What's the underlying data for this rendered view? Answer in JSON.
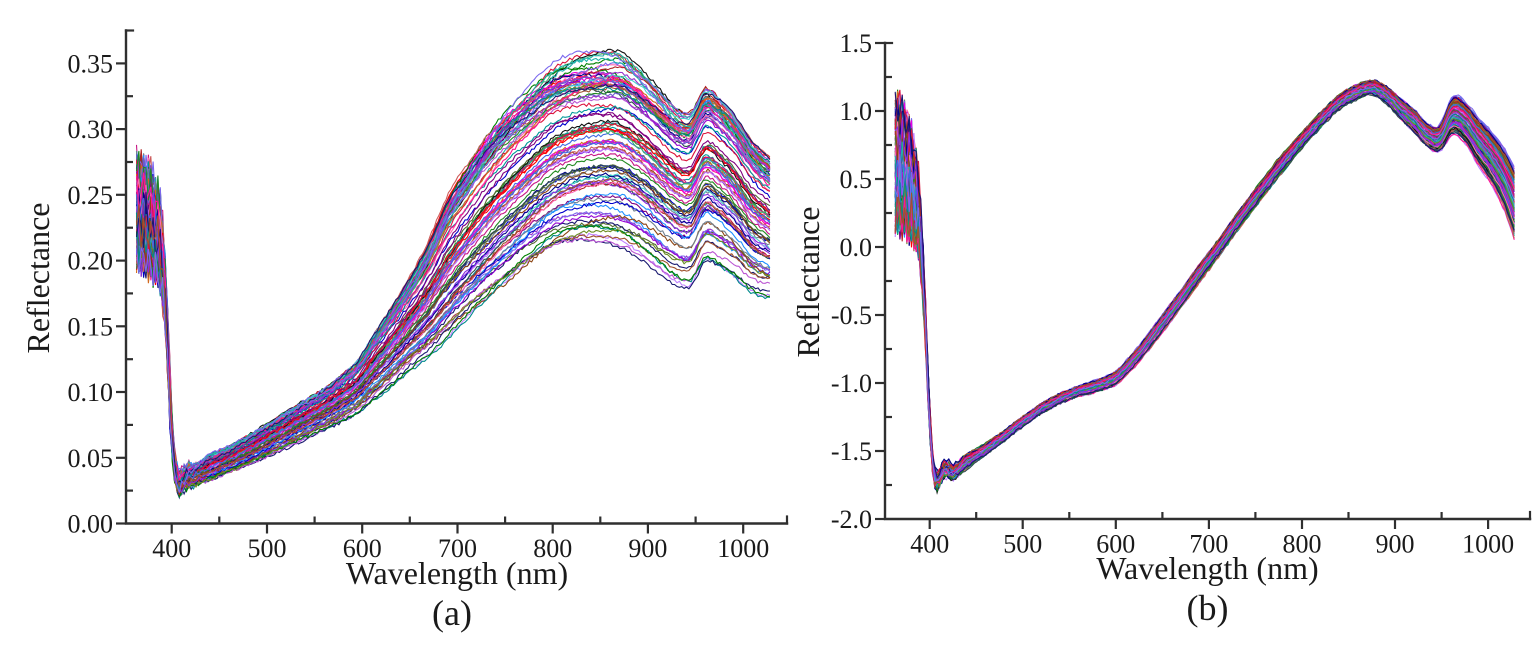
{
  "page": {
    "background": "#ffffff"
  },
  "style": {
    "axis_color": "#2f2f2f",
    "text_color": "#1a1a1a",
    "line_width": 1.1,
    "palette": [
      "#e600e6",
      "#bf7fff",
      "#0000cd",
      "#008000",
      "#ff0000",
      "#009999",
      "#800080",
      "#556b2f",
      "#1e90ff",
      "#c71585",
      "#2f4f4f",
      "#b22222",
      "#6a5acd",
      "#228b22",
      "#ff69b4",
      "#00008b",
      "#8b4513",
      "#9932cc",
      "#20b2aa",
      "#dc143c",
      "#4169e1",
      "#6b8e23",
      "#8a2be2",
      "#008b8b",
      "#ff1493",
      "#191970",
      "#a0522d",
      "#7b68ee",
      "#3cb371",
      "#cd5c5c",
      "#9400d3",
      "#111111",
      "#708090",
      "#d2691e",
      "#48d1cc",
      "#ba55d3"
    ]
  },
  "chart_data": [
    {
      "id": "a",
      "type": "line",
      "caption": "(a)",
      "xlabel": "Wavelength (nm)",
      "ylabel": "Reflectance",
      "x_range": [
        352,
        1046
      ],
      "y_range": [
        0,
        0.375
      ],
      "x_major": [
        {
          "nm": 400,
          "label": "400"
        },
        {
          "nm": 500,
          "label": "500"
        },
        {
          "nm": 600,
          "label": "600"
        },
        {
          "nm": 700,
          "label": "700"
        },
        {
          "nm": 800,
          "label": "800"
        },
        {
          "nm": 900,
          "label": "900"
        },
        {
          "nm": 1000,
          "label": "1000"
        }
      ],
      "x_minor_nm": [
        450,
        550,
        650,
        750,
        850,
        950
      ],
      "y_major": [
        {
          "v": 0.0,
          "label": "0.00"
        },
        {
          "v": 0.05,
          "label": "0.05"
        },
        {
          "v": 0.1,
          "label": "0.10"
        },
        {
          "v": 0.15,
          "label": "0.15"
        },
        {
          "v": 0.2,
          "label": "0.20"
        },
        {
          "v": 0.25,
          "label": "0.25"
        },
        {
          "v": 0.3,
          "label": "0.30"
        },
        {
          "v": 0.35,
          "label": "0.35"
        }
      ],
      "y_minor_v": [
        0.025,
        0.075,
        0.125,
        0.175,
        0.225,
        0.275,
        0.325
      ],
      "n_curves": 100,
      "u_top_weighted": true,
      "seed": 11,
      "wl_start": 363,
      "wl_end": 1030,
      "wl_step": 2.5,
      "clamp_pad": 0.004,
      "noise": {
        "uv_amp": 0.006,
        "amp": 0.0013
      },
      "curve_model": {
        "comment": "mean spectral curve and envelope half-width of the ~100 leaf reflectance spectra",
        "wavelength_nm": [
          365,
          372,
          380,
          388,
          394,
          399,
          403,
          408,
          413,
          418,
          425,
          440,
          460,
          480,
          500,
          520,
          540,
          560,
          580,
          595,
          610,
          630,
          650,
          670,
          690,
          710,
          730,
          750,
          775,
          800,
          825,
          850,
          870,
          890,
          910,
          930,
          945,
          960,
          975,
          990,
          1010,
          1030
        ],
        "mean": [
          0.238,
          0.235,
          0.228,
          0.213,
          0.165,
          0.085,
          0.044,
          0.031,
          0.034,
          0.036,
          0.037,
          0.042,
          0.048,
          0.055,
          0.063,
          0.071,
          0.079,
          0.087,
          0.096,
          0.104,
          0.117,
          0.133,
          0.15,
          0.168,
          0.19,
          0.208,
          0.225,
          0.24,
          0.257,
          0.272,
          0.28,
          0.283,
          0.282,
          0.274,
          0.262,
          0.25,
          0.248,
          0.266,
          0.26,
          0.25,
          0.232,
          0.222
        ],
        "halfwidth": [
          0.037,
          0.036,
          0.034,
          0.03,
          0.024,
          0.016,
          0.011,
          0.01,
          0.01,
          0.01,
          0.009,
          0.009,
          0.009,
          0.01,
          0.011,
          0.012,
          0.013,
          0.014,
          0.016,
          0.018,
          0.022,
          0.027,
          0.032,
          0.04,
          0.05,
          0.055,
          0.06,
          0.063,
          0.064,
          0.065,
          0.065,
          0.065,
          0.065,
          0.063,
          0.061,
          0.059,
          0.059,
          0.059,
          0.058,
          0.056,
          0.052,
          0.048
        ]
      }
    },
    {
      "id": "b",
      "type": "line",
      "caption": "(b)",
      "xlabel": "Wavelength (nm)",
      "ylabel": "Reflectance",
      "x_range": [
        352,
        1045
      ],
      "y_range": [
        -2.0,
        1.5
      ],
      "x_major": [
        {
          "nm": 400,
          "label": "400"
        },
        {
          "nm": 500,
          "label": "500"
        },
        {
          "nm": 600,
          "label": "600"
        },
        {
          "nm": 700,
          "label": "700"
        },
        {
          "nm": 800,
          "label": "800"
        },
        {
          "nm": 900,
          "label": "900"
        },
        {
          "nm": 1000,
          "label": "1000"
        }
      ],
      "x_minor_nm": [
        450,
        550,
        650,
        750,
        850,
        950
      ],
      "y_major": [
        {
          "v": 1.5,
          "label": "1.5"
        },
        {
          "v": 1.0,
          "label": "1.0"
        },
        {
          "v": 0.5,
          "label": "0.5"
        },
        {
          "v": 0.0,
          "label": "0.0"
        },
        {
          "v": -0.5,
          "label": "-0.5"
        },
        {
          "v": -1.0,
          "label": "-1.0"
        },
        {
          "v": -1.5,
          "label": "-1.5"
        },
        {
          "v": -2.0,
          "label": "-2.0"
        }
      ],
      "y_minor_v": [
        -1.75,
        -1.25,
        -0.75,
        -0.25,
        0.25,
        0.75,
        1.25
      ],
      "n_curves": 100,
      "u_top_weighted": false,
      "seed": 23,
      "wl_start": 363,
      "wl_end": 1030,
      "wl_step": 2.5,
      "clamp_pad": 0.01,
      "noise": {
        "uv_amp": 0.045,
        "amp": 0.009
      },
      "curve_model": {
        "comment": "mean standardized reflectance curve and envelope half-width",
        "wavelength_nm": [
          365,
          372,
          380,
          388,
          394,
          399,
          403,
          408,
          413,
          418,
          425,
          440,
          460,
          480,
          500,
          520,
          540,
          560,
          580,
          600,
          615,
          630,
          650,
          670,
          690,
          710,
          730,
          750,
          775,
          800,
          820,
          840,
          860,
          875,
          890,
          905,
          920,
          935,
          948,
          962,
          975,
          990,
          1005,
          1018,
          1030
        ],
        "mean": [
          0.62,
          0.58,
          0.48,
          0.25,
          -0.35,
          -1.1,
          -1.58,
          -1.72,
          -1.66,
          -1.63,
          -1.66,
          -1.58,
          -1.49,
          -1.39,
          -1.285,
          -1.19,
          -1.115,
          -1.06,
          -1.02,
          -0.96,
          -0.86,
          -0.74,
          -0.56,
          -0.38,
          -0.19,
          -0.01,
          0.18,
          0.36,
          0.58,
          0.78,
          0.93,
          1.06,
          1.14,
          1.17,
          1.12,
          1.02,
          0.93,
          0.82,
          0.8,
          0.97,
          0.92,
          0.78,
          0.65,
          0.5,
          0.3
        ],
        "halfwidth": [
          0.42,
          0.4,
          0.36,
          0.27,
          0.17,
          0.1,
          0.08,
          0.07,
          0.07,
          0.07,
          0.065,
          0.05,
          0.04,
          0.035,
          0.035,
          0.035,
          0.035,
          0.035,
          0.04,
          0.045,
          0.05,
          0.055,
          0.06,
          0.06,
          0.06,
          0.06,
          0.06,
          0.06,
          0.06,
          0.055,
          0.05,
          0.05,
          0.05,
          0.05,
          0.06,
          0.07,
          0.08,
          0.08,
          0.09,
          0.13,
          0.14,
          0.16,
          0.18,
          0.21,
          0.25
        ]
      }
    }
  ]
}
